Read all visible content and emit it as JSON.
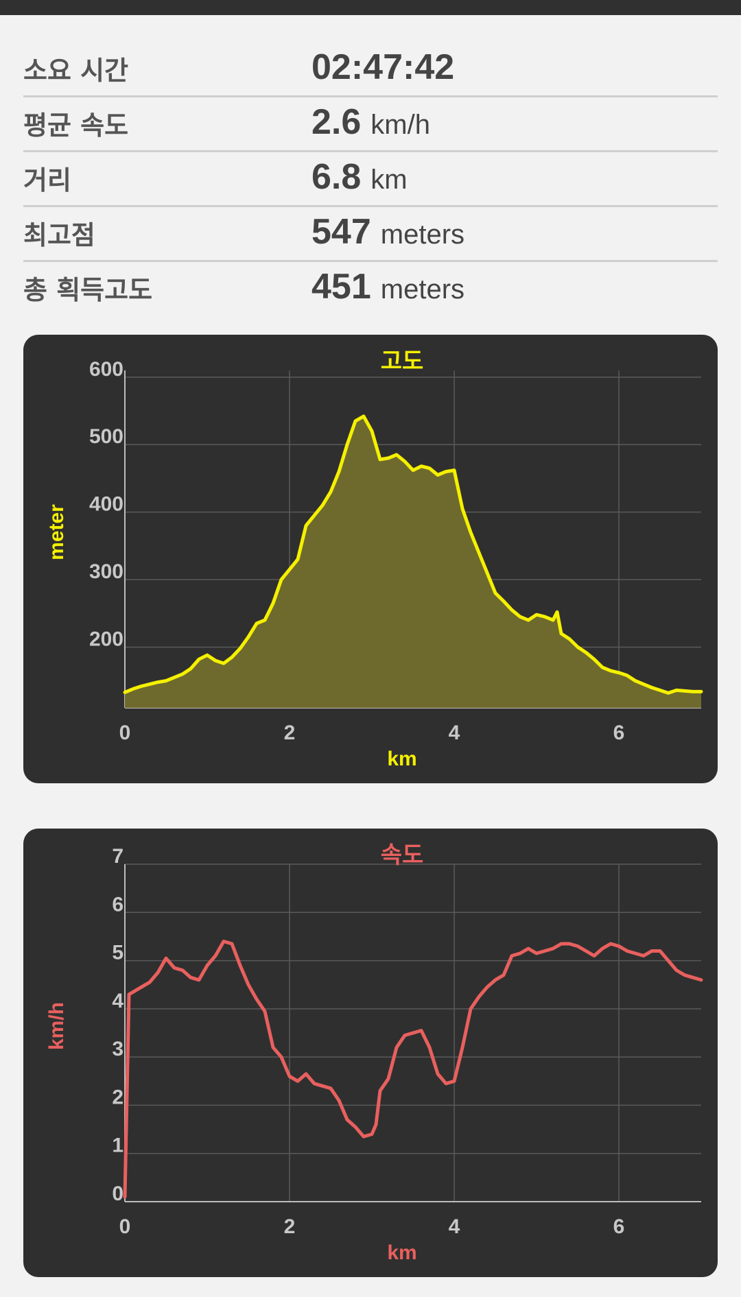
{
  "stats": [
    {
      "label": "소요 시간",
      "value": "02:47:42",
      "unit": ""
    },
    {
      "label": "평균 속도",
      "value": "2.6",
      "unit": "km/h"
    },
    {
      "label": "거리",
      "value": "6.8",
      "unit": "km"
    },
    {
      "label": "최고점",
      "value": "547",
      "unit": "meters"
    },
    {
      "label": "총 획득고도",
      "value": "451",
      "unit": "meters"
    }
  ],
  "colors": {
    "altitude": "#f5f000",
    "altitude_fill": "#6e6a2e",
    "speed": "#e8605e",
    "grid": "#5a5a5a"
  },
  "chart_data": [
    {
      "type": "area",
      "title": "고도",
      "xlabel": "km",
      "ylabel": "meter",
      "xlim": [
        0,
        7
      ],
      "ylim": [
        110,
        610
      ],
      "x_ticks": [
        "0",
        "2",
        "4",
        "6"
      ],
      "y_ticks": [
        "600",
        "500",
        "400",
        "300",
        "200"
      ],
      "grid": true,
      "x": [
        0,
        0.1,
        0.2,
        0.3,
        0.4,
        0.5,
        0.6,
        0.7,
        0.8,
        0.9,
        1.0,
        1.1,
        1.2,
        1.3,
        1.4,
        1.5,
        1.6,
        1.7,
        1.8,
        1.9,
        2.0,
        2.1,
        2.2,
        2.3,
        2.4,
        2.5,
        2.6,
        2.7,
        2.8,
        2.9,
        3.0,
        3.1,
        3.2,
        3.3,
        3.4,
        3.5,
        3.6,
        3.7,
        3.8,
        3.9,
        4.0,
        4.1,
        4.2,
        4.3,
        4.4,
        4.5,
        4.6,
        4.7,
        4.8,
        4.9,
        5.0,
        5.1,
        5.2,
        5.25,
        5.3,
        5.4,
        5.5,
        5.6,
        5.7,
        5.8,
        5.9,
        6.0,
        6.1,
        6.2,
        6.3,
        6.4,
        6.5,
        6.6,
        6.7,
        6.8,
        6.9,
        7.0
      ],
      "y": [
        133,
        138,
        142,
        145,
        148,
        150,
        155,
        160,
        168,
        182,
        188,
        180,
        176,
        185,
        198,
        215,
        235,
        240,
        265,
        300,
        315,
        330,
        380,
        395,
        410,
        430,
        460,
        500,
        535,
        542,
        520,
        478,
        480,
        485,
        475,
        462,
        468,
        465,
        455,
        460,
        462,
        405,
        370,
        340,
        310,
        280,
        268,
        255,
        245,
        240,
        248,
        245,
        240,
        252,
        220,
        212,
        200,
        192,
        182,
        170,
        165,
        162,
        158,
        150,
        145,
        140,
        136,
        132,
        136,
        135,
        134,
        134
      ]
    },
    {
      "type": "line",
      "title": "속도",
      "xlabel": "km",
      "ylabel": "km/h",
      "xlim": [
        0,
        7
      ],
      "ylim": [
        0,
        7
      ],
      "x_ticks": [
        "0",
        "2",
        "4",
        "6"
      ],
      "y_ticks": [
        "7",
        "6",
        "5",
        "4",
        "3",
        "2",
        "1",
        "0"
      ],
      "grid": true,
      "x": [
        0,
        0.05,
        0.1,
        0.2,
        0.3,
        0.4,
        0.5,
        0.6,
        0.7,
        0.8,
        0.9,
        1.0,
        1.1,
        1.2,
        1.3,
        1.4,
        1.5,
        1.6,
        1.7,
        1.8,
        1.9,
        2.0,
        2.1,
        2.2,
        2.3,
        2.4,
        2.5,
        2.6,
        2.7,
        2.8,
        2.9,
        3.0,
        3.05,
        3.1,
        3.2,
        3.3,
        3.4,
        3.5,
        3.6,
        3.7,
        3.8,
        3.9,
        4.0,
        4.1,
        4.2,
        4.3,
        4.4,
        4.5,
        4.6,
        4.7,
        4.8,
        4.85,
        4.9,
        5.0,
        5.1,
        5.2,
        5.3,
        5.4,
        5.5,
        5.6,
        5.7,
        5.8,
        5.9,
        6.0,
        6.1,
        6.2,
        6.3,
        6.4,
        6.5,
        6.6,
        6.7,
        6.8,
        6.9,
        7.0
      ],
      "y": [
        0.1,
        4.3,
        4.35,
        4.45,
        4.55,
        4.75,
        5.05,
        4.85,
        4.8,
        4.65,
        4.6,
        4.9,
        5.1,
        5.4,
        5.35,
        4.9,
        4.5,
        4.2,
        3.95,
        3.2,
        3.0,
        2.6,
        2.5,
        2.65,
        2.45,
        2.4,
        2.35,
        2.1,
        1.7,
        1.55,
        1.35,
        1.4,
        1.6,
        2.3,
        2.55,
        3.2,
        3.45,
        3.5,
        3.55,
        3.2,
        2.65,
        2.45,
        2.5,
        3.2,
        4.0,
        4.25,
        4.45,
        4.6,
        4.7,
        5.1,
        5.15,
        5.2,
        5.25,
        5.15,
        5.2,
        5.25,
        5.35,
        5.35,
        5.3,
        5.2,
        5.1,
        5.25,
        5.35,
        5.3,
        5.2,
        5.15,
        5.1,
        5.2,
        5.2,
        5.0,
        4.8,
        4.7,
        4.65,
        4.6
      ]
    }
  ]
}
